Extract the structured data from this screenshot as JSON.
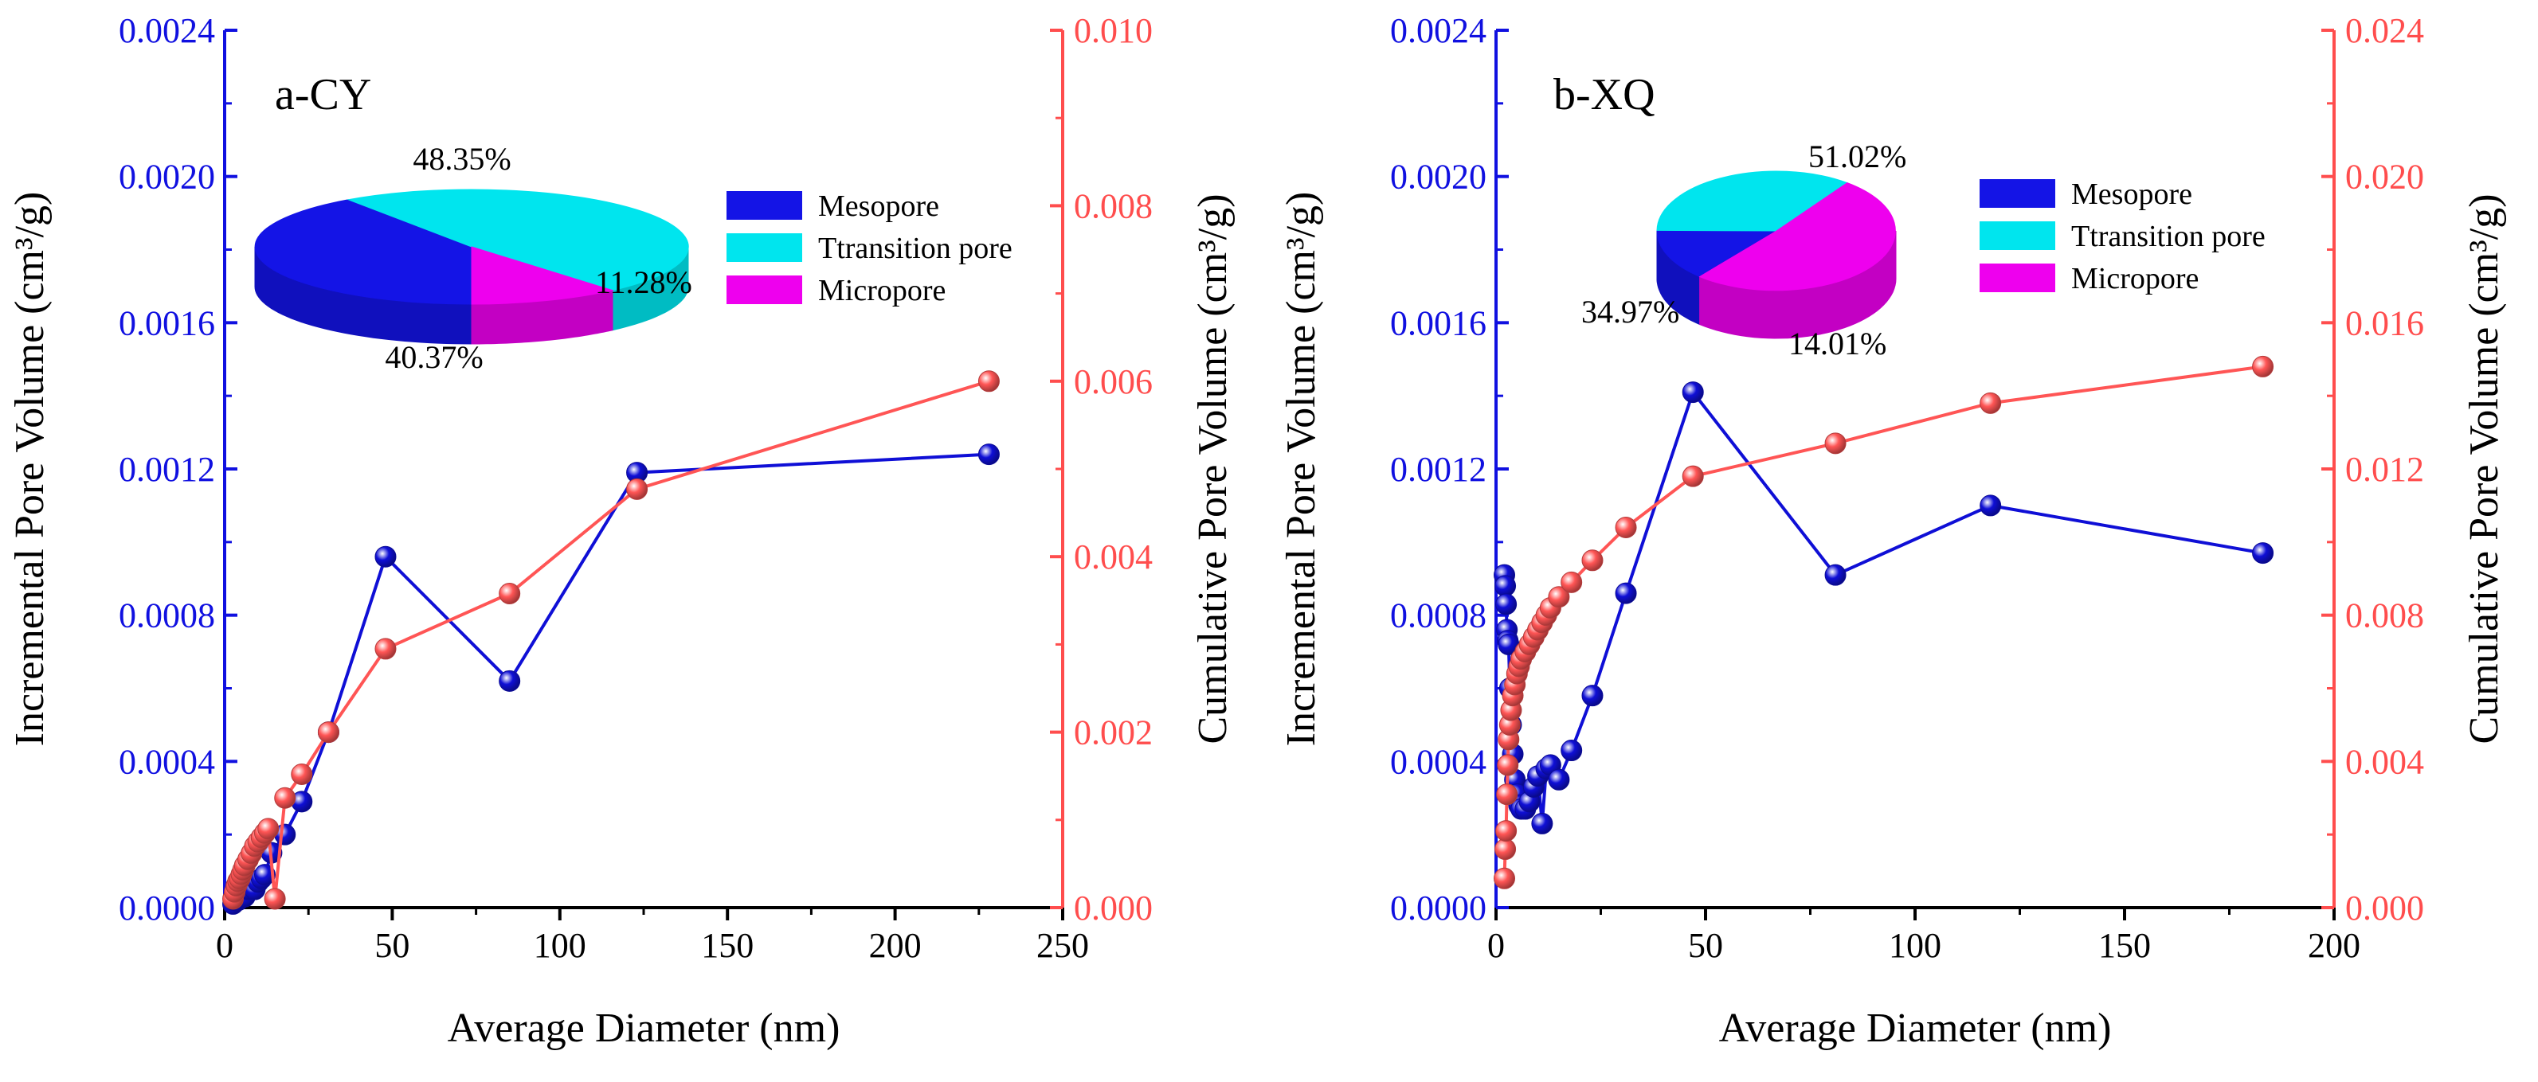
{
  "chart_data": [
    {
      "type": "line",
      "panel_label": "a-CY",
      "xlabel": "Average Diameter (nm)",
      "ylabel": "Incremental Pore Volume (cm³/g)",
      "y2label": "Cumulative Pore Volume (cm³/g)",
      "xlim": [
        0,
        250
      ],
      "ylim": [
        0,
        0.0024
      ],
      "y2lim": [
        0,
        0.01
      ],
      "x_ticks": [
        "0",
        "50",
        "100",
        "150",
        "200",
        "250"
      ],
      "y_ticks": [
        "0.0000",
        "0.0004",
        "0.0008",
        "0.0012",
        "0.0016",
        "0.0020",
        "0.0024"
      ],
      "y2_ticks": [
        "0.000",
        "0.002",
        "0.004",
        "0.006",
        "0.008",
        "0.010"
      ],
      "series": [
        {
          "name": "Incremental Pore Volume",
          "axis": "left",
          "color": "#0f0fd6",
          "x": [
            2.5,
            3,
            3.5,
            4,
            5,
            6,
            7,
            8,
            9,
            10,
            11,
            12,
            14,
            18,
            23,
            31,
            48,
            85,
            123,
            228
          ],
          "y": [
            1e-05,
            2e-05,
            3e-05,
            2e-05,
            4e-05,
            3e-05,
            5e-05,
            6e-05,
            5e-05,
            7e-05,
            8e-05,
            9e-05,
            0.00015,
            0.0002,
            0.00029,
            0.00048,
            0.00096,
            0.00062,
            0.00119,
            0.00124
          ]
        },
        {
          "name": "Cumulative Pore Volume",
          "axis": "right",
          "color": "#ff5555",
          "x": [
            2.5,
            3,
            3.5,
            4,
            4.5,
            5,
            5.5,
            6,
            7,
            8,
            9,
            10,
            11,
            12,
            13,
            15,
            18,
            23,
            31,
            48,
            85,
            123,
            228
          ],
          "y": [
            0.0001,
            0.00018,
            0.00025,
            0.0003,
            0.00033,
            0.00038,
            0.00043,
            0.00048,
            0.00055,
            0.00062,
            0.0007,
            0.00075,
            0.0008,
            0.00085,
            0.0009,
            0.0001,
            0.00125,
            0.00152,
            0.002,
            0.00295,
            0.00358,
            0.00477,
            0.006
          ]
        }
      ],
      "pie": {
        "slices": [
          {
            "name": "Mesopore",
            "value": 40.37,
            "label": "40.37%",
            "color": "#1414e6"
          },
          {
            "name": "Ttransition pore",
            "value": 48.35,
            "label": "48.35%",
            "color": "#00e5ee"
          },
          {
            "name": "Micropore",
            "value": 11.28,
            "label": "11.28%",
            "color": "#ee00ee"
          }
        ]
      },
      "legend": [
        {
          "label": "Mesopore",
          "color": "#1414e6"
        },
        {
          "label": "Ttransition pore",
          "color": "#00e5ee"
        },
        {
          "label": "Micropore",
          "color": "#ee00ee"
        }
      ]
    },
    {
      "type": "line",
      "panel_label": "b-XQ",
      "xlabel": "Average Diameter (nm)",
      "ylabel": "Incremental Pore Volume (cm³/g)",
      "y2label": "Cumulative Pore Volume (cm³/g)",
      "xlim": [
        0,
        200
      ],
      "ylim": [
        0,
        0.0024
      ],
      "y2lim": [
        0,
        0.024
      ],
      "x_ticks": [
        "0",
        "50",
        "100",
        "150",
        "200"
      ],
      "y_ticks": [
        "0.0000",
        "0.0004",
        "0.0008",
        "0.0012",
        "0.0016",
        "0.0020",
        "0.0024"
      ],
      "y2_ticks": [
        "0.000",
        "0.004",
        "0.008",
        "0.012",
        "0.016",
        "0.020",
        "0.024"
      ],
      "series": [
        {
          "name": "Incremental Pore Volume",
          "axis": "left",
          "color": "#0f0fd6",
          "x": [
            2,
            2.2,
            2.4,
            2.6,
            2.8,
            3,
            3.3,
            3.6,
            4,
            4.5,
            5,
            5.5,
            6,
            7,
            8,
            9,
            10,
            11,
            12,
            13,
            15,
            18,
            23,
            31,
            47,
            81,
            118,
            183
          ],
          "y": [
            0.00091,
            0.00088,
            0.00083,
            0.00076,
            0.00073,
            0.00072,
            0.0006,
            0.0005,
            0.00042,
            0.00035,
            0.00031,
            0.00028,
            0.00027,
            0.00027,
            0.00029,
            0.00033,
            0.00036,
            0.00023,
            0.00038,
            0.00039,
            0.00035,
            0.00043,
            0.00058,
            0.00086,
            0.00141,
            0.00091,
            0.0011,
            0.00097
          ]
        },
        {
          "name": "Cumulative Pore Volume",
          "axis": "right",
          "color": "#ff5555",
          "x": [
            2,
            2.2,
            2.4,
            2.6,
            2.8,
            3,
            3.3,
            3.6,
            4,
            4.5,
            5,
            5.5,
            6,
            7,
            8,
            9,
            10,
            11,
            12,
            13,
            15,
            18,
            23,
            31,
            47,
            81,
            118,
            183
          ],
          "y": [
            0.0008,
            0.0016,
            0.0021,
            0.0031,
            0.0039,
            0.0046,
            0.005,
            0.0054,
            0.0058,
            0.0061,
            0.0064,
            0.0066,
            0.0068,
            0.007,
            0.0072,
            0.0074,
            0.0076,
            0.0078,
            0.008,
            0.0082,
            0.0085,
            0.0089,
            0.0095,
            0.0104,
            0.0118,
            0.0127,
            0.0138,
            0.0148
          ]
        }
      ],
      "pie": {
        "slices": [
          {
            "name": "Mesopore",
            "value": 14.01,
            "label": "14.01%",
            "color": "#1414e6"
          },
          {
            "name": "Ttransition pore",
            "value": 34.97,
            "label": "34.97%",
            "color": "#00e5ee"
          },
          {
            "name": "Micropore",
            "value": 51.02,
            "label": "51.02%",
            "color": "#ee00ee"
          }
        ]
      },
      "legend": [
        {
          "label": "Mesopore",
          "color": "#1414e6"
        },
        {
          "label": "Ttransition pore",
          "color": "#00e5ee"
        },
        {
          "label": "Micropore",
          "color": "#ee00ee"
        }
      ]
    }
  ]
}
